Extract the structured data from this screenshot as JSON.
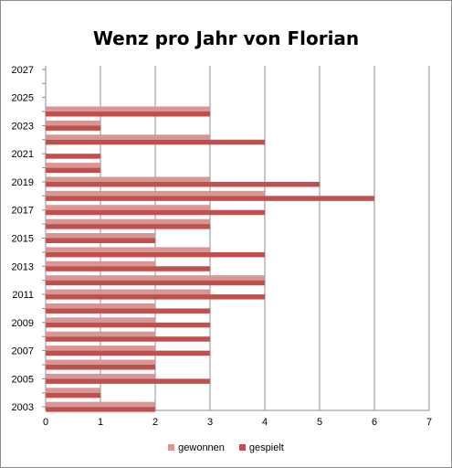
{
  "chart_data": {
    "type": "bar",
    "orientation": "horizontal",
    "title": "Wenz pro Jahr von Florian",
    "xlabel": "",
    "ylabel": "",
    "xlim": [
      0,
      7
    ],
    "x_ticks": [
      "0",
      "1",
      "2",
      "3",
      "4",
      "5",
      "6",
      "7"
    ],
    "y_tick_labels": [
      "2003",
      "2005",
      "2007",
      "2009",
      "2011",
      "2013",
      "2015",
      "2017",
      "2019",
      "2021",
      "2023",
      "2025",
      "2027"
    ],
    "categories": [
      "2003",
      "2004",
      "2005",
      "2006",
      "2007",
      "2008",
      "2009",
      "2010",
      "2011",
      "2012",
      "2013",
      "2014",
      "2015",
      "2016",
      "2017",
      "2018",
      "2019",
      "2020",
      "2021",
      "2022",
      "2023",
      "2024",
      "2025",
      "2026",
      "2027"
    ],
    "series": [
      {
        "name": "gewonnen",
        "color": "#d99694",
        "values": [
          2,
          1,
          2,
          2,
          2,
          2,
          2,
          2,
          3,
          4,
          2,
          3,
          2,
          3,
          3,
          4,
          3,
          1,
          0,
          3,
          1,
          3,
          0,
          0,
          0
        ]
      },
      {
        "name": "gespielt",
        "color": "#c0504d",
        "values": [
          2,
          1,
          3,
          2,
          3,
          3,
          3,
          3,
          4,
          4,
          3,
          4,
          2,
          3,
          4,
          6,
          5,
          1,
          1,
          4,
          1,
          3,
          0,
          0,
          0
        ]
      }
    ],
    "grid": "vertical",
    "legend": "bottom"
  }
}
